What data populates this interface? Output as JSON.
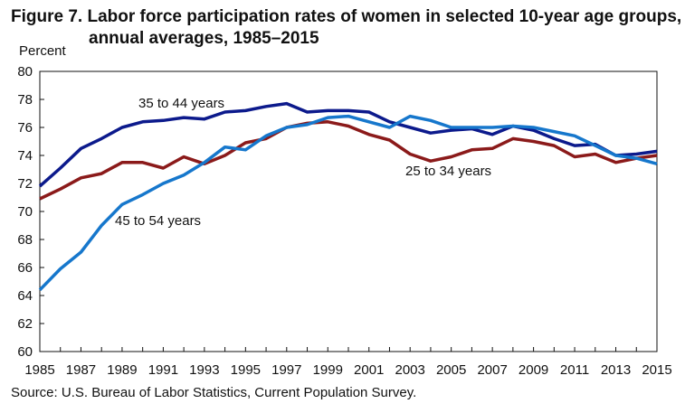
{
  "chart_data": {
    "type": "line",
    "title_line1": "Figure 7. Labor force participation rates of women in selected 10-year age groups,",
    "title_line2": "annual averages, 1985–2015",
    "ylabel": "Percent",
    "xlabel": "",
    "ylim": [
      60,
      80
    ],
    "yticks": [
      60,
      62,
      64,
      66,
      68,
      70,
      72,
      74,
      76,
      78,
      80
    ],
    "xlim": [
      1985,
      2015
    ],
    "xtick_labels": [
      "1985",
      "1987",
      "1989",
      "1991",
      "1993",
      "1995",
      "1997",
      "1999",
      "2001",
      "2003",
      "2005",
      "2007",
      "2009",
      "2011",
      "2013",
      "2015"
    ],
    "grid": false,
    "x": [
      1985,
      1986,
      1987,
      1988,
      1989,
      1990,
      1991,
      1992,
      1993,
      1994,
      1995,
      1996,
      1997,
      1998,
      1999,
      2000,
      2001,
      2002,
      2003,
      2004,
      2005,
      2006,
      2007,
      2008,
      2009,
      2010,
      2011,
      2012,
      2013,
      2014,
      2015
    ],
    "series": [
      {
        "name": "25 to 34 years",
        "color": "#8b1a1a",
        "values": [
          70.9,
          71.6,
          72.4,
          72.7,
          73.5,
          73.5,
          73.1,
          73.9,
          73.4,
          74.0,
          74.9,
          75.2,
          76.0,
          76.3,
          76.4,
          76.1,
          75.5,
          75.1,
          74.1,
          73.6,
          73.9,
          74.4,
          74.5,
          75.2,
          75.0,
          74.7,
          73.9,
          74.1,
          73.5,
          73.8,
          74.0
        ]
      },
      {
        "name": "35 to 44 years",
        "color": "#0c1a8c",
        "values": [
          71.8,
          73.1,
          74.5,
          75.2,
          76.0,
          76.4,
          76.5,
          76.7,
          76.6,
          77.1,
          77.2,
          77.5,
          77.7,
          77.1,
          77.2,
          77.2,
          77.1,
          76.4,
          76.0,
          75.6,
          75.8,
          75.9,
          75.5,
          76.1,
          75.8,
          75.2,
          74.7,
          74.8,
          74.0,
          74.1,
          74.3
        ]
      },
      {
        "name": "45 to 54 years",
        "color": "#1677cc",
        "values": [
          64.4,
          65.9,
          67.1,
          69.0,
          70.5,
          71.2,
          72.0,
          72.6,
          73.5,
          74.6,
          74.4,
          75.4,
          76.0,
          76.2,
          76.7,
          76.8,
          76.4,
          76.0,
          76.8,
          76.5,
          76.0,
          76.0,
          76.0,
          76.1,
          76.0,
          75.7,
          75.4,
          74.7,
          74.0,
          73.8,
          73.4
        ]
      }
    ]
  },
  "source": "Source: U.S. Bureau of Labor Statistics, Current Population Survey."
}
